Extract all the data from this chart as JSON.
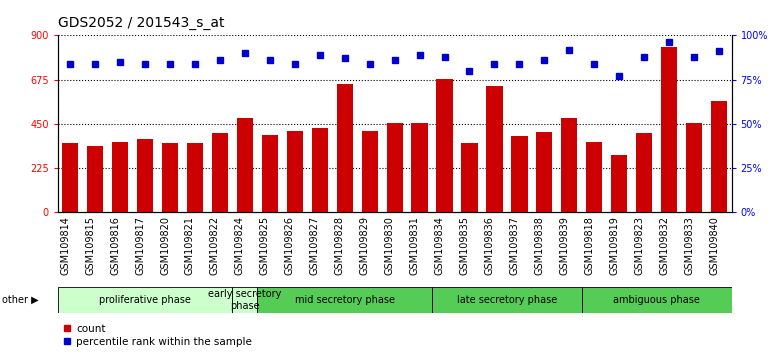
{
  "title": "GDS2052 / 201543_s_at",
  "samples": [
    "GSM109814",
    "GSM109815",
    "GSM109816",
    "GSM109817",
    "GSM109820",
    "GSM109821",
    "GSM109822",
    "GSM109824",
    "GSM109825",
    "GSM109826",
    "GSM109827",
    "GSM109828",
    "GSM109829",
    "GSM109830",
    "GSM109831",
    "GSM109834",
    "GSM109835",
    "GSM109836",
    "GSM109837",
    "GSM109838",
    "GSM109839",
    "GSM109818",
    "GSM109819",
    "GSM109823",
    "GSM109832",
    "GSM109833",
    "GSM109840"
  ],
  "counts": [
    355,
    340,
    358,
    375,
    355,
    355,
    405,
    480,
    395,
    415,
    430,
    655,
    415,
    455,
    455,
    680,
    355,
    645,
    390,
    410,
    480,
    360,
    290,
    405,
    840,
    455,
    565
  ],
  "percentile_pct": [
    84,
    84,
    85,
    84,
    84,
    84,
    86,
    90,
    86,
    84,
    89,
    87,
    84,
    86,
    89,
    88,
    80,
    84,
    84,
    86,
    92,
    84,
    77,
    88,
    96,
    88,
    91
  ],
  "bar_color": "#cc0000",
  "dot_color": "#0000cc",
  "yticks_left": [
    0,
    225,
    450,
    675,
    900
  ],
  "yticks_right": [
    0,
    25,
    50,
    75,
    100
  ],
  "ylim_left": [
    0,
    900
  ],
  "ylim_right": [
    0,
    100
  ],
  "grid_yticks": [
    225,
    450,
    675
  ],
  "background_color": "#ffffff",
  "title_fontsize": 10,
  "tick_fontsize": 7,
  "phase_fontsize": 7,
  "legend_fontsize": 7.5,
  "phases": [
    {
      "label": "proliferative phase",
      "start": 0,
      "end": 7,
      "color": "#ccffcc"
    },
    {
      "label": "early secretory\nphase",
      "start": 7,
      "end": 8,
      "color": "#ccffcc"
    },
    {
      "label": "mid secretory phase",
      "start": 8,
      "end": 15,
      "color": "#55cc55"
    },
    {
      "label": "late secretory phase",
      "start": 15,
      "end": 21,
      "color": "#55cc55"
    },
    {
      "label": "ambiguous phase",
      "start": 21,
      "end": 27,
      "color": "#55cc55"
    }
  ],
  "xtick_bg_color": "#d8d8d8",
  "other_label": "other ▶"
}
